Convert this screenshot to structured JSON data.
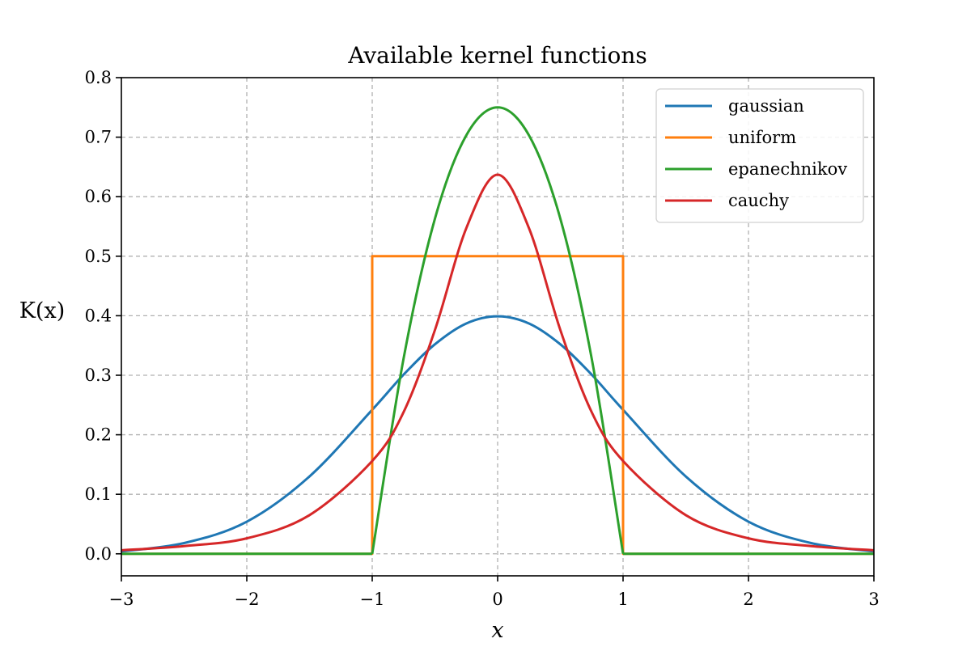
{
  "chart_data": {
    "type": "line",
    "title": "Available kernel functions",
    "xlabel": "x",
    "ylabel": "K(x)",
    "xlim": [
      -3,
      3
    ],
    "ylim": [
      -0.037,
      0.8
    ],
    "xticks": [
      -3,
      -2,
      -1,
      0,
      1,
      2,
      3
    ],
    "xtick_labels": [
      "−3",
      "−2",
      "−1",
      "0",
      "1",
      "2",
      "3"
    ],
    "yticks": [
      0.0,
      0.1,
      0.2,
      0.3,
      0.4,
      0.5,
      0.6,
      0.7,
      0.8
    ],
    "ytick_labels": [
      "0.0",
      "0.1",
      "0.2",
      "0.3",
      "0.4",
      "0.5",
      "0.6",
      "0.7",
      "0.8"
    ],
    "grid": true,
    "legend_position": "top-right",
    "x": [
      -3.0,
      -2.5,
      -2.0,
      -1.5,
      -1.0,
      -0.75,
      -0.5,
      -0.25,
      0.0,
      0.25,
      0.5,
      0.75,
      1.0,
      1.5,
      2.0,
      2.5,
      3.0
    ],
    "series": [
      {
        "name": "gaussian",
        "color": "#1f77b4",
        "points": [
          [
            -3.0,
            0.004
          ],
          [
            -2.5,
            0.018
          ],
          [
            -2.0,
            0.054
          ],
          [
            -1.5,
            0.13
          ],
          [
            -1.0,
            0.242
          ],
          [
            -0.75,
            0.301
          ],
          [
            -0.5,
            0.352
          ],
          [
            -0.25,
            0.387
          ],
          [
            0.0,
            0.399
          ],
          [
            0.25,
            0.387
          ],
          [
            0.5,
            0.352
          ],
          [
            0.75,
            0.301
          ],
          [
            1.0,
            0.242
          ],
          [
            1.5,
            0.13
          ],
          [
            2.0,
            0.054
          ],
          [
            2.5,
            0.018
          ],
          [
            3.0,
            0.004
          ]
        ]
      },
      {
        "name": "uniform",
        "color": "#ff7f0e",
        "points": [
          [
            -3.0,
            0.0
          ],
          [
            -1.0,
            0.0
          ],
          [
            -1.0,
            0.5
          ],
          [
            1.0,
            0.5
          ],
          [
            1.0,
            0.0
          ],
          [
            3.0,
            0.0
          ]
        ]
      },
      {
        "name": "epanechnikov",
        "color": "#2ca02c",
        "points": [
          [
            -3.0,
            0.0
          ],
          [
            -1.0,
            0.0
          ],
          [
            -0.75,
            0.328
          ],
          [
            -0.5,
            0.563
          ],
          [
            -0.25,
            0.703
          ],
          [
            0.0,
            0.75
          ],
          [
            0.25,
            0.703
          ],
          [
            0.5,
            0.563
          ],
          [
            0.75,
            0.328
          ],
          [
            1.0,
            0.0
          ],
          [
            3.0,
            0.0
          ]
        ]
      },
      {
        "name": "cauchy",
        "color": "#d62728",
        "points": [
          [
            -3.0,
            0.006
          ],
          [
            -2.5,
            0.013
          ],
          [
            -2.0,
            0.026
          ],
          [
            -1.5,
            0.065
          ],
          [
            -1.0,
            0.156
          ],
          [
            -0.75,
            0.238
          ],
          [
            -0.5,
            0.376
          ],
          [
            -0.25,
            0.547
          ],
          [
            0.0,
            0.637
          ],
          [
            0.25,
            0.547
          ],
          [
            0.5,
            0.376
          ],
          [
            0.75,
            0.238
          ],
          [
            1.0,
            0.156
          ],
          [
            1.5,
            0.065
          ],
          [
            2.0,
            0.026
          ],
          [
            2.5,
            0.013
          ],
          [
            3.0,
            0.006
          ]
        ]
      }
    ]
  }
}
